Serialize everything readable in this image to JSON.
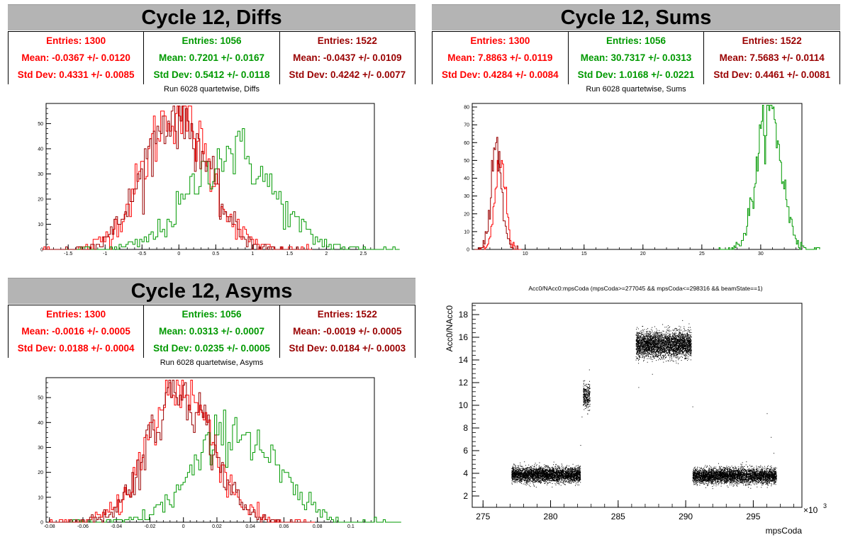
{
  "colors": {
    "red": "#ff0000",
    "green": "#009900",
    "dark_red": "#990000",
    "title_bg": "#b4b4b4"
  },
  "panels": [
    {
      "title": "Cycle 12, Diffs",
      "subtitle": "Run 6028 quartetwise, Diffs",
      "stats": [
        {
          "entries": "Entries: 1300",
          "mean": "Mean: -0.0367 +/- 0.0120",
          "std": "Std Dev: 0.4331 +/- 0.0085",
          "color": "#ff0000"
        },
        {
          "entries": "Entries: 1056",
          "mean": "Mean: 0.7201 +/- 0.0167",
          "std": "Std Dev: 0.5412 +/- 0.0118",
          "color": "#009900"
        },
        {
          "entries": "Entries: 1522",
          "mean": "Mean: -0.0437 +/- 0.0109",
          "std": "Std Dev: 0.4242 +/- 0.0077",
          "color": "#990000"
        }
      ]
    },
    {
      "title": "Cycle 12, Sums",
      "subtitle": "Run 6028 quartetwise, Sums",
      "stats": [
        {
          "entries": "Entries: 1300",
          "mean": "Mean: 7.8863 +/- 0.0119",
          "std": "Std Dev: 0.4284 +/- 0.0084",
          "color": "#ff0000"
        },
        {
          "entries": "Entries: 1056",
          "mean": "Mean: 30.7317 +/- 0.0313",
          "std": "Std Dev: 1.0168 +/- 0.0221",
          "color": "#009900"
        },
        {
          "entries": "Entries: 1522",
          "mean": "Mean: 7.5683 +/- 0.0114",
          "std": "Std Dev: 0.4461 +/- 0.0081",
          "color": "#990000"
        }
      ]
    },
    {
      "title": "Cycle 12, Asyms",
      "subtitle": "Run 6028 quartetwise, Asyms",
      "stats": [
        {
          "entries": "Entries: 1300",
          "mean": "Mean: -0.0016 +/- 0.0005",
          "std": "Std Dev: 0.0188 +/- 0.0004",
          "color": "#ff0000"
        },
        {
          "entries": "Entries: 1056",
          "mean": "Mean: 0.0313 +/- 0.0007",
          "std": "Std Dev: 0.0235 +/- 0.0005",
          "color": "#009900"
        },
        {
          "entries": "Entries: 1522",
          "mean": "Mean: -0.0019 +/- 0.0005",
          "std": "Std Dev: 0.0184 +/- 0.0003",
          "color": "#990000"
        }
      ]
    }
  ],
  "chart_data": [
    {
      "type": "area",
      "title": "Run 6028 quartetwise, Diffs",
      "xlim": [
        -1.8,
        2.65
      ],
      "ylim": [
        0,
        58
      ],
      "xticks": [
        -1.5,
        -1,
        -0.5,
        0,
        0.5,
        1,
        1.5,
        2,
        2.5
      ],
      "xtick_labels": [
        "-1.5",
        "-1",
        "-0.5",
        "0",
        "0.5",
        "1",
        "1.5",
        "2",
        "2.5"
      ],
      "yticks": [
        0,
        10,
        20,
        30,
        40,
        50
      ],
      "ytick_labels": [
        "0",
        "10",
        "20",
        "30",
        "40",
        "50"
      ],
      "series": [
        {
          "color": "#ff0000",
          "mean": -0.0367,
          "std": 0.4331,
          "peak": 55
        },
        {
          "color": "#009900",
          "mean": 0.7201,
          "std": 0.5412,
          "peak": 39
        },
        {
          "color": "#990000",
          "mean": -0.0437,
          "std": 0.4242,
          "peak": 54
        }
      ]
    },
    {
      "type": "area",
      "title": "Run 6028 quartetwise, Sums",
      "xlim": [
        5.5,
        33.5
      ],
      "ylim": [
        0,
        82
      ],
      "xticks": [
        10,
        15,
        20,
        25,
        30
      ],
      "xtick_labels": [
        "10",
        "15",
        "20",
        "25",
        "30"
      ],
      "yticks": [
        0,
        10,
        20,
        30,
        40,
        50,
        60,
        70,
        80
      ],
      "ytick_labels": [
        "0",
        "10",
        "20",
        "30",
        "40",
        "50",
        "60",
        "70",
        "80"
      ],
      "series": [
        {
          "color": "#ff0000",
          "mean": 7.8863,
          "std": 0.4284,
          "peak": 52
        },
        {
          "color": "#009900",
          "mean": 30.7317,
          "std": 1.0168,
          "peak": 79
        },
        {
          "color": "#990000",
          "mean": 7.5683,
          "std": 0.4461,
          "peak": 57
        }
      ]
    },
    {
      "type": "area",
      "title": "Run 6028 quartetwise, Asyms",
      "xlim": [
        -0.082,
        0.114
      ],
      "ylim": [
        0,
        58
      ],
      "xticks": [
        -0.08,
        -0.06,
        -0.04,
        -0.02,
        0,
        0.02,
        0.04,
        0.06,
        0.08,
        0.1
      ],
      "xtick_labels": [
        "-0.08",
        "-0.06",
        "-0.04",
        "-0.02",
        "0",
        "0.02",
        "0.04",
        "0.06",
        "0.08",
        "0.1"
      ],
      "yticks": [
        0,
        10,
        20,
        30,
        40,
        50
      ],
      "ytick_labels": [
        "0",
        "10",
        "20",
        "30",
        "40",
        "50"
      ],
      "series": [
        {
          "color": "#ff0000",
          "mean": -0.0016,
          "std": 0.0188,
          "peak": 55
        },
        {
          "color": "#009900",
          "mean": 0.0313,
          "std": 0.0235,
          "peak": 37
        },
        {
          "color": "#990000",
          "mean": -0.0019,
          "std": 0.0184,
          "peak": 54
        }
      ]
    },
    {
      "type": "scatter",
      "title": "Acc0/NAcc0:mpsCoda (mpsCoda>=277045 && mpsCoda<=298316 && beamState==1)",
      "xlabel": "mpsCoda",
      "ylabel": "Acc0/NAcc0",
      "x_multiplier": "×10",
      "x_multiplier_exp": "3",
      "xlim": [
        274.2,
        298.6
      ],
      "ylim": [
        1.0,
        19.0
      ],
      "xticks": [
        275,
        280,
        285,
        290,
        295
      ],
      "xtick_labels": [
        "275",
        "280",
        "285",
        "290",
        "295"
      ],
      "yticks": [
        2,
        4,
        6,
        8,
        10,
        12,
        14,
        16,
        18
      ],
      "ytick_labels": [
        "2",
        "4",
        "6",
        "8",
        "10",
        "12",
        "14",
        "16",
        "18"
      ],
      "clusters": [
        {
          "x_range": [
            277.1,
            282.2
          ],
          "y_center": 3.9,
          "y_spread": 0.32,
          "density": 3600
        },
        {
          "x_range": [
            282.4,
            282.9
          ],
          "y_center": 10.8,
          "y_spread": 0.55,
          "density": 300
        },
        {
          "x_range": [
            286.3,
            290.4
          ],
          "y_center": 15.4,
          "y_spread": 0.55,
          "density": 3400
        },
        {
          "x_range": [
            290.5,
            296.7
          ],
          "y_center": 3.8,
          "y_spread": 0.33,
          "density": 4200
        }
      ],
      "point_color": "#000000"
    }
  ]
}
